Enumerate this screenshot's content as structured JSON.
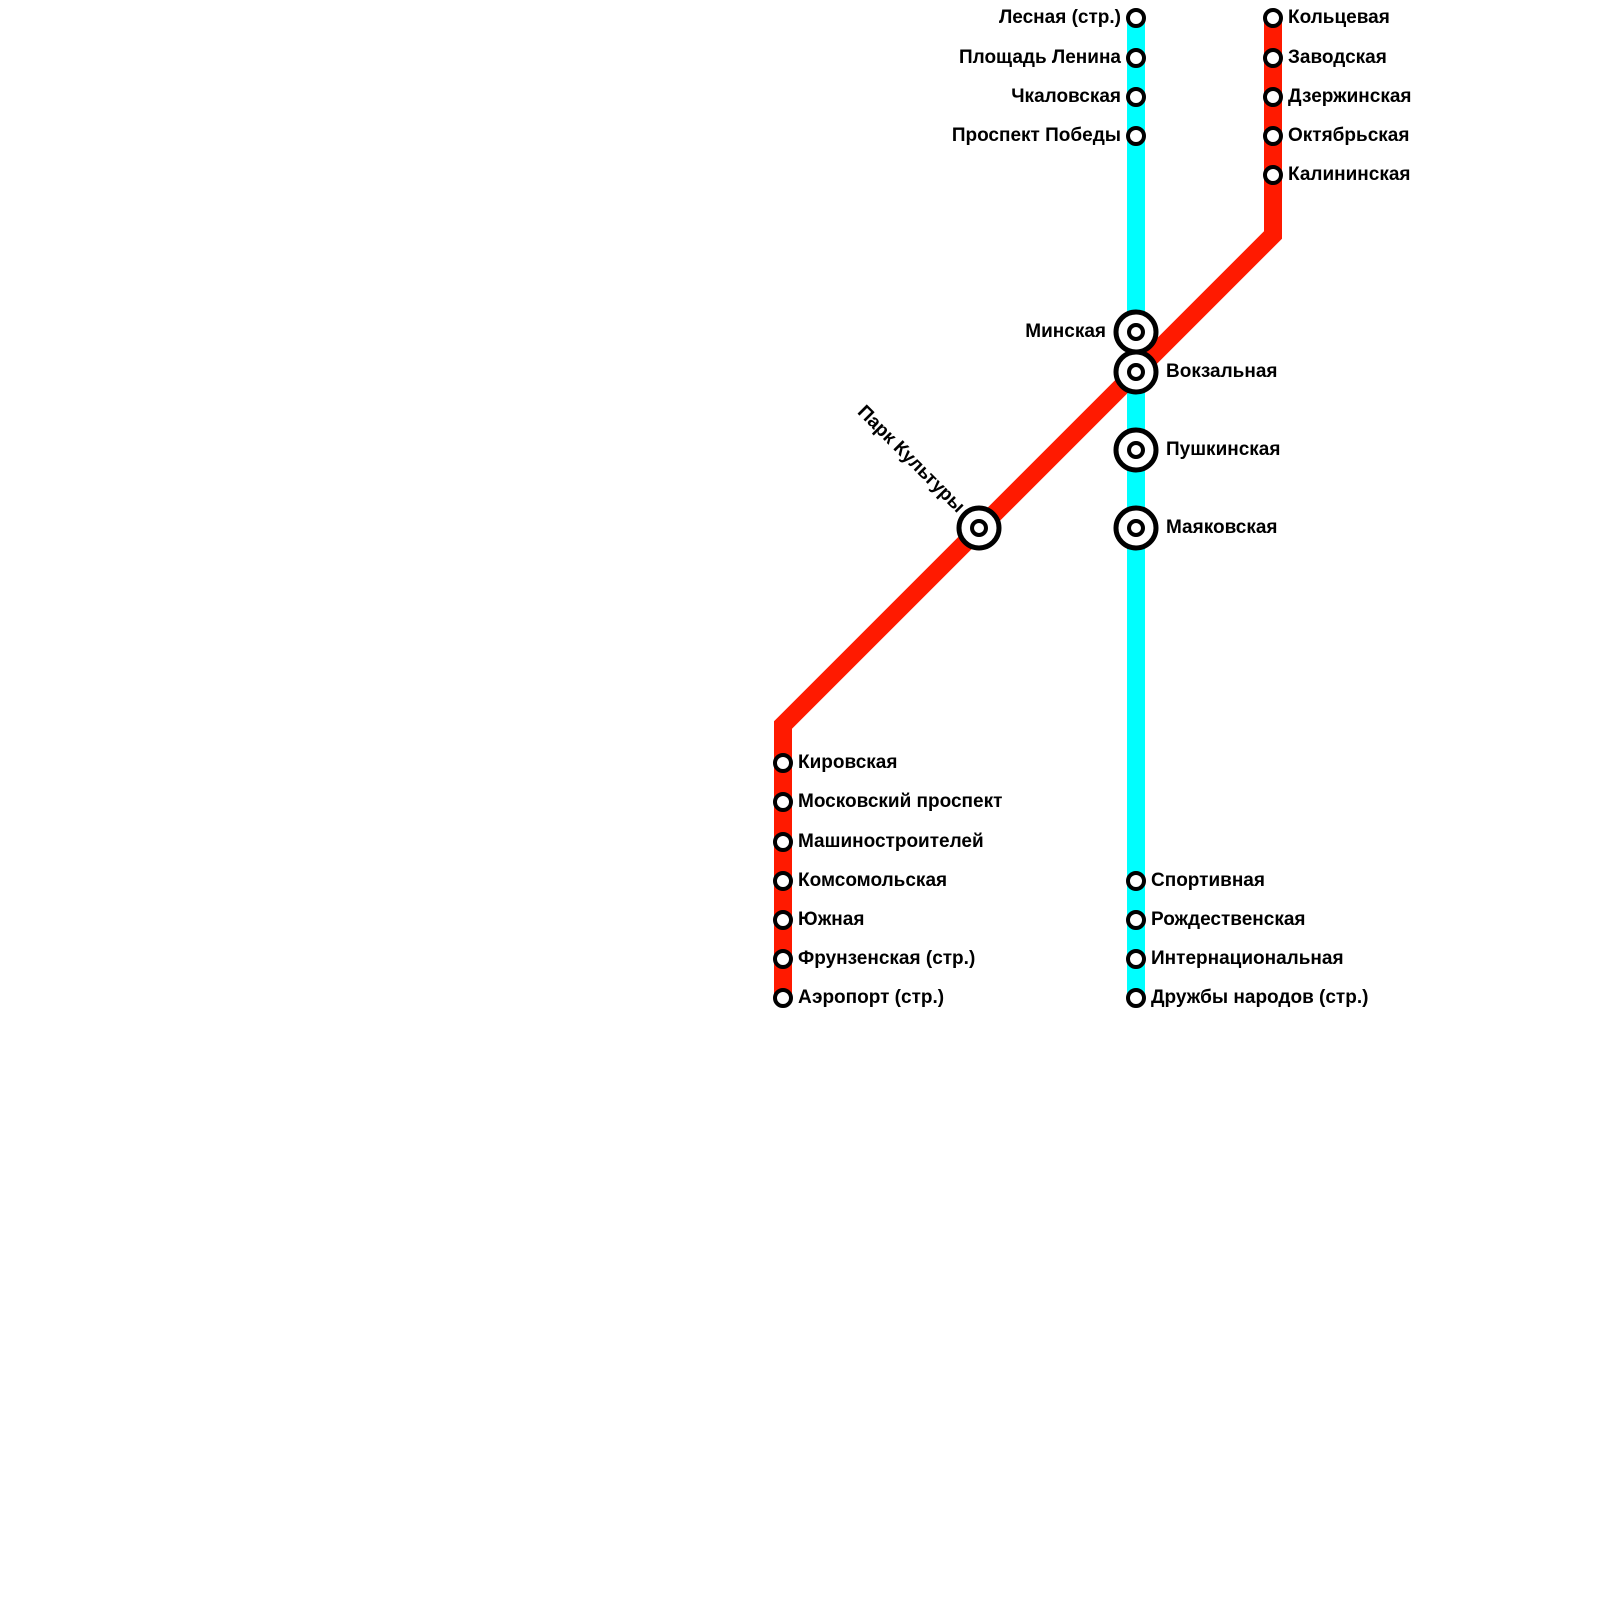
{
  "lines": [
    {
      "color": "#ff1a00",
      "stations": [
        "Кольцевая",
        "Заводская",
        "Дзержинская",
        "Октябрьская",
        "Калининская",
        "Вокзальная",
        "Парк Культуры",
        "Кировская",
        "Московский проспект",
        "Машиностроителей",
        "Комсомольская",
        "Южная",
        "Фрунзенская (стр.)",
        "Аэропорт (стр.)"
      ]
    },
    {
      "color": "#00ffff",
      "stations": [
        "Лесная (стр.)",
        "Площадь Ленина",
        "Чкаловская",
        "Проспект Победы",
        "Минская",
        "Пушкинская",
        "Маяковская",
        "Спортивная",
        "Рождественская",
        "Интернациональная",
        "Дружбы народов (стр.)"
      ]
    }
  ]
}
